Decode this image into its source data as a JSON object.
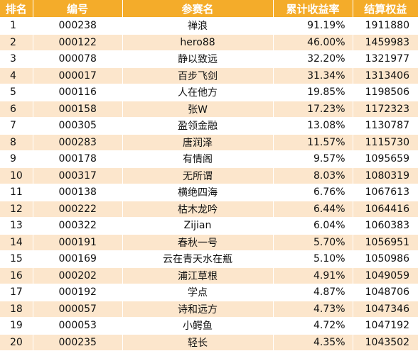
{
  "headers": {
    "rank": "排名",
    "code": "编号",
    "name": "参赛名",
    "return_rate": "累计收益率",
    "equity": "结算权益"
  },
  "colors": {
    "header_bg": "#f4ac2a",
    "header_text": "#ffffff",
    "stripe": "#fce6cc"
  },
  "rows": [
    {
      "rank": "1",
      "code": "000238",
      "name": "禅浪",
      "return_rate": "91.19%",
      "equity": "1911880"
    },
    {
      "rank": "2",
      "code": "000122",
      "name": "hero88",
      "return_rate": "46.00%",
      "equity": "1459983"
    },
    {
      "rank": "3",
      "code": "000078",
      "name": "静以致远",
      "return_rate": "32.20%",
      "equity": "1321977"
    },
    {
      "rank": "4",
      "code": "000017",
      "name": "百步飞剑",
      "return_rate": "31.34%",
      "equity": "1313406"
    },
    {
      "rank": "5",
      "code": "000116",
      "name": "人在他方",
      "return_rate": "19.85%",
      "equity": "1198506"
    },
    {
      "rank": "6",
      "code": "000158",
      "name": "张W",
      "return_rate": "17.23%",
      "equity": "1172323"
    },
    {
      "rank": "7",
      "code": "000305",
      "name": "盈领金融",
      "return_rate": "13.08%",
      "equity": "1130787"
    },
    {
      "rank": "8",
      "code": "000283",
      "name": "唐润泽",
      "return_rate": "11.57%",
      "equity": "1115730"
    },
    {
      "rank": "9",
      "code": "000178",
      "name": "有情阁",
      "return_rate": "9.57%",
      "equity": "1095659"
    },
    {
      "rank": "10",
      "code": "000317",
      "name": "无所谓",
      "return_rate": "8.03%",
      "equity": "1080319"
    },
    {
      "rank": "11",
      "code": "000138",
      "name": "横绝四海",
      "return_rate": "6.76%",
      "equity": "1067613"
    },
    {
      "rank": "12",
      "code": "000222",
      "name": "枯木龙吟",
      "return_rate": "6.44%",
      "equity": "1064416"
    },
    {
      "rank": "13",
      "code": "000322",
      "name": "Zijian",
      "return_rate": "6.04%",
      "equity": "1060383"
    },
    {
      "rank": "14",
      "code": "000191",
      "name": "春秋一号",
      "return_rate": "5.70%",
      "equity": "1056951"
    },
    {
      "rank": "15",
      "code": "000169",
      "name": "云在青天水在瓶",
      "return_rate": "5.10%",
      "equity": "1050986"
    },
    {
      "rank": "16",
      "code": "000202",
      "name": "浦江草根",
      "return_rate": "4.91%",
      "equity": "1049059"
    },
    {
      "rank": "17",
      "code": "000192",
      "name": "学点",
      "return_rate": "4.87%",
      "equity": "1048706"
    },
    {
      "rank": "18",
      "code": "000057",
      "name": "诗和远方",
      "return_rate": "4.73%",
      "equity": "1047346"
    },
    {
      "rank": "19",
      "code": "000053",
      "name": "小鳄鱼",
      "return_rate": "4.72%",
      "equity": "1047192"
    },
    {
      "rank": "20",
      "code": "000235",
      "name": "轻长",
      "return_rate": "4.35%",
      "equity": "1043502"
    }
  ]
}
